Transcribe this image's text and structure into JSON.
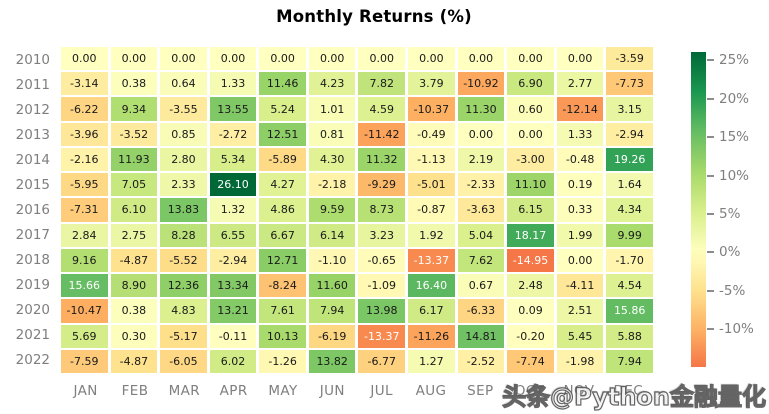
{
  "title": "Monthly Returns (%)",
  "watermark": "头条@Python金融量化",
  "chart_data": {
    "type": "heatmap",
    "title": "Monthly Returns (%)",
    "rows": [
      "2010",
      "2011",
      "2012",
      "2013",
      "2014",
      "2015",
      "2016",
      "2017",
      "2018",
      "2019",
      "2020",
      "2021",
      "2022"
    ],
    "columns": [
      "JAN",
      "FEB",
      "MAR",
      "APR",
      "MAY",
      "JUN",
      "JUL",
      "AUG",
      "SEP",
      "OCT",
      "NOV",
      "DEC"
    ],
    "values": [
      [
        0.0,
        0.0,
        0.0,
        0.0,
        0.0,
        0.0,
        0.0,
        0.0,
        0.0,
        0.0,
        0.0,
        -3.59
      ],
      [
        -3.14,
        0.38,
        0.64,
        1.33,
        11.46,
        4.23,
        7.82,
        3.79,
        -10.92,
        6.9,
        2.77,
        -7.73
      ],
      [
        -6.22,
        9.34,
        -3.55,
        13.55,
        5.24,
        1.01,
        4.59,
        -10.37,
        11.3,
        0.6,
        -12.14,
        3.15
      ],
      [
        -3.96,
        -3.52,
        0.85,
        -2.72,
        12.51,
        0.81,
        -11.42,
        -0.49,
        0.0,
        0.0,
        1.33,
        -2.94
      ],
      [
        -2.16,
        11.93,
        2.8,
        5.34,
        -5.89,
        4.3,
        11.32,
        -1.13,
        2.19,
        -3.0,
        -0.48,
        19.26
      ],
      [
        -5.95,
        7.05,
        2.33,
        26.1,
        4.27,
        -2.18,
        -9.29,
        -5.01,
        -2.33,
        11.1,
        0.19,
        1.64
      ],
      [
        -7.31,
        6.1,
        13.83,
        1.32,
        4.86,
        9.59,
        8.73,
        -0.87,
        -3.63,
        6.15,
        0.33,
        4.34
      ],
      [
        2.84,
        2.75,
        8.28,
        6.55,
        6.67,
        6.14,
        3.23,
        1.92,
        5.04,
        18.17,
        1.99,
        9.99
      ],
      [
        9.16,
        -4.87,
        -5.52,
        -2.94,
        12.71,
        -1.1,
        -0.65,
        -13.37,
        7.62,
        -14.95,
        0.0,
        -1.7
      ],
      [
        15.66,
        8.9,
        12.36,
        13.34,
        -8.24,
        11.6,
        -1.09,
        16.4,
        0.67,
        2.48,
        -4.11,
        4.54
      ],
      [
        -10.47,
        0.38,
        4.83,
        13.21,
        7.61,
        7.94,
        13.98,
        6.17,
        -6.33,
        0.09,
        2.51,
        15.86
      ],
      [
        5.69,
        0.3,
        -5.17,
        -0.11,
        10.13,
        -6.19,
        -13.37,
        -11.26,
        14.81,
        -0.2,
        5.45,
        5.88
      ],
      [
        -7.59,
        -4.87,
        -6.05,
        6.02,
        -1.26,
        13.82,
        -6.77,
        1.27,
        -2.52,
        -7.74,
        -1.98,
        7.94
      ]
    ],
    "value_decimals": 2,
    "colormap": "RdYlGn",
    "center": 0,
    "vmin": -14.95,
    "vmax": 26.1,
    "legend_position": "right",
    "colorbar_ticks": [
      {
        "label": "25%",
        "value": 25
      },
      {
        "label": "20%",
        "value": 20
      },
      {
        "label": "15%",
        "value": 15
      },
      {
        "label": "10%",
        "value": 10
      },
      {
        "label": "5%",
        "value": 5
      },
      {
        "label": "0%",
        "value": 0
      },
      {
        "label": "-5%",
        "value": -5
      },
      {
        "label": "-10%",
        "value": -10
      }
    ],
    "colors": {
      "axis_label_gray": "#7f7f7f",
      "annot_dark": "#1a1a1a",
      "annot_light": "#ffffff",
      "rdylgn_anchors": [
        "#a50026",
        "#d73027",
        "#f46d43",
        "#fdae61",
        "#fee08b",
        "#ffffbf",
        "#d9ef8b",
        "#a6d96a",
        "#66bd63",
        "#1a9850",
        "#006837"
      ]
    }
  }
}
